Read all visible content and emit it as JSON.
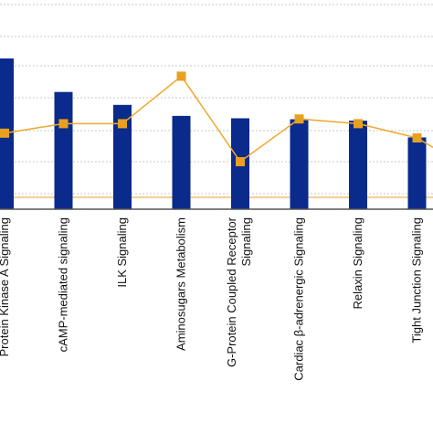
{
  "chart_data": {
    "type": "bar",
    "categories": [
      "Protein Kinase A Signaling",
      "cAMP-mediated signaling",
      "ILK Signaling",
      "Aminosugars Metabolism",
      "G-Protein Coupled Receptor Signaling",
      "Cardiac β-adrenergic Signaling",
      "Relaxin Signaling",
      "Tight Junction Signaling"
    ],
    "series": [
      {
        "type": "bar",
        "values": [
          3.15,
          2.45,
          2.18,
          1.95,
          1.9,
          1.88,
          1.85,
          1.5
        ]
      },
      {
        "type": "line",
        "values": [
          0.16,
          0.18,
          0.18,
          0.28,
          0.1,
          0.19,
          0.18,
          0.15
        ]
      }
    ],
    "xlabel": "",
    "ylabel": "",
    "ylim": [
      0,
      4.4
    ],
    "ylim_right": [
      0,
      0.4
    ],
    "threshold_line": 0.025,
    "grid": true,
    "legend": "none",
    "colors": {
      "bar": "#0a2a8c",
      "line": "#f0a830",
      "marker": "#e8a020",
      "threshold": "#f0c070",
      "grid": "#c8c8c8",
      "axis": "#555555"
    }
  }
}
